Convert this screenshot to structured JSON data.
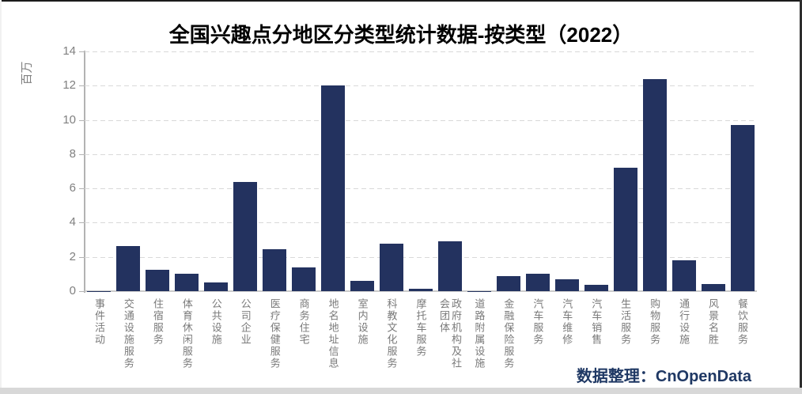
{
  "chart_data": {
    "type": "bar",
    "title": "全国兴趣点分地区分类型统计数据-按类型（2022）",
    "xlabel": "",
    "ylabel": "百万",
    "ylim": [
      0,
      14
    ],
    "yticks": [
      0,
      2,
      4,
      6,
      8,
      10,
      12,
      14
    ],
    "grid": "horizontal-dashed",
    "legend": "none",
    "categories": [
      "事件活动",
      "交通设施服务",
      "住宿服务",
      "体育休闲服务",
      "公共设施",
      "公司企业",
      "医疗保健服务",
      "商务住宅",
      "地名地址信息",
      "室内设施",
      "科教文化服务",
      "摩托车服务",
      "政府机构及社会团体",
      "道路附属设施",
      "金融保险服务",
      "汽车服务",
      "汽车维修",
      "汽车销售",
      "生活服务",
      "购物服务",
      "通行设施",
      "风景名胜",
      "餐饮服务"
    ],
    "values": [
      0.02,
      2.65,
      1.25,
      1.0,
      0.5,
      6.4,
      2.45,
      1.4,
      12.0,
      0.6,
      2.75,
      0.15,
      2.9,
      0.02,
      0.9,
      1.0,
      0.7,
      0.35,
      7.2,
      12.4,
      1.8,
      0.4,
      9.7
    ],
    "colors": {
      "bar": "#23325F",
      "credit_text": "#1F3864",
      "axis_text": "#808080",
      "category_text": "#7A7A7A",
      "gridline": "#D9D9D9"
    },
    "annotations": [
      "数据整理：CnOpenData"
    ]
  }
}
